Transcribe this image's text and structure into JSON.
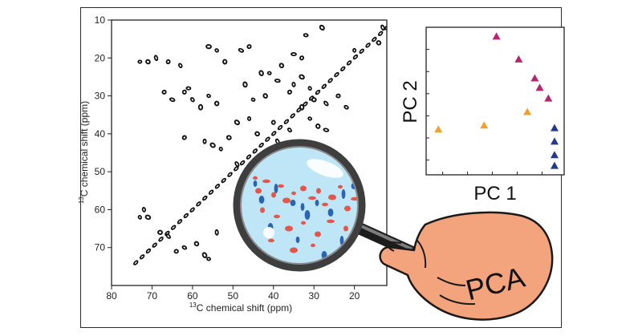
{
  "nmr": {
    "xlabel_sup": "13",
    "xlabel": "C chemical shift (ppm)",
    "ylabel_sup": "13",
    "ylabel": "C chemical shift (ppm)",
    "x_ticks": [
      "80",
      "70",
      "60",
      "50",
      "40",
      "30",
      "20"
    ],
    "y_ticks": [
      "10",
      "20",
      "30",
      "40",
      "50",
      "60",
      "70"
    ],
    "x_range": [
      80,
      12
    ],
    "y_range": [
      10,
      80
    ]
  },
  "chart_data": {
    "type": "scatter",
    "xlabel": "PC 1",
    "ylabel": "PC 2",
    "series": [
      {
        "color": "#b5266f",
        "values": [
          [
            0.53,
            0.98
          ],
          [
            0.71,
            0.81
          ],
          [
            0.84,
            0.67
          ],
          [
            0.88,
            0.6
          ],
          [
            0.95,
            0.52
          ]
        ]
      },
      {
        "color": "#f2a12e",
        "values": [
          [
            0.06,
            0.29
          ],
          [
            0.43,
            0.32
          ],
          [
            0.78,
            0.42
          ]
        ]
      },
      {
        "color": "#233a8c",
        "values": [
          [
            1.0,
            0.3
          ],
          [
            1.0,
            0.2
          ],
          [
            1.0,
            0.1
          ],
          [
            1.0,
            0.02
          ]
        ]
      }
    ]
  },
  "hand_label": "PCA",
  "colors": {
    "hand": "#f4a47c",
    "lens": "#bfe6f6",
    "red_peak": "#e3574b",
    "blue_peak": "#2b64b5"
  }
}
